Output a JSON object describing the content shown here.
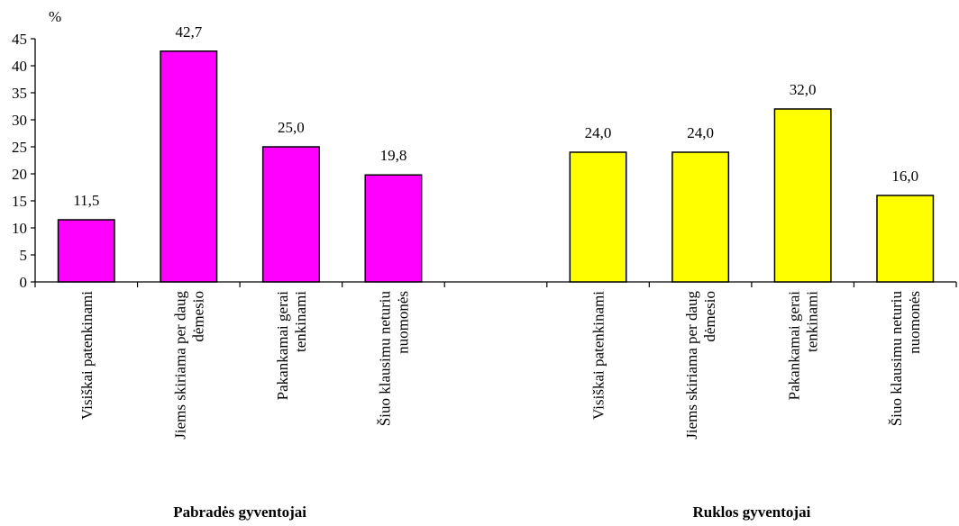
{
  "chart_data": {
    "type": "bar",
    "ylabel": "%",
    "ylim": [
      0,
      45
    ],
    "yticks": [
      "0",
      "5",
      "10",
      "15",
      "20",
      "25",
      "30",
      "35",
      "40",
      "45"
    ],
    "grid": false,
    "legend": "none",
    "groups": [
      {
        "name": "Pabradės gyventojai",
        "color": "#ff00ff",
        "categories": [
          [
            "Visiškai patenkinami"
          ],
          [
            "Jiems skiriama per daug",
            "dėmesio"
          ],
          [
            "Pakankamai gerai",
            "tenkinami"
          ],
          [
            "Šiuo klausimu neturiu",
            "nuomonės"
          ]
        ],
        "values": [
          11.5,
          42.7,
          25.0,
          19.8
        ],
        "labels": [
          "11,5",
          "42,7",
          "25,0",
          "19,8"
        ]
      },
      {
        "name": "Ruklos gyventojai",
        "color": "#ffff00",
        "categories": [
          [
            "Visiškai patenkinami"
          ],
          [
            "Jiems skiriama per daug",
            "dėmesio"
          ],
          [
            "Pakankamai gerai",
            "tenkinami"
          ],
          [
            "Šiuo klausimu neturiu",
            "nuomonės"
          ]
        ],
        "values": [
          24.0,
          24.0,
          32.0,
          16.0
        ],
        "labels": [
          "24,0",
          "24,0",
          "32,0",
          "16,0"
        ]
      }
    ]
  }
}
